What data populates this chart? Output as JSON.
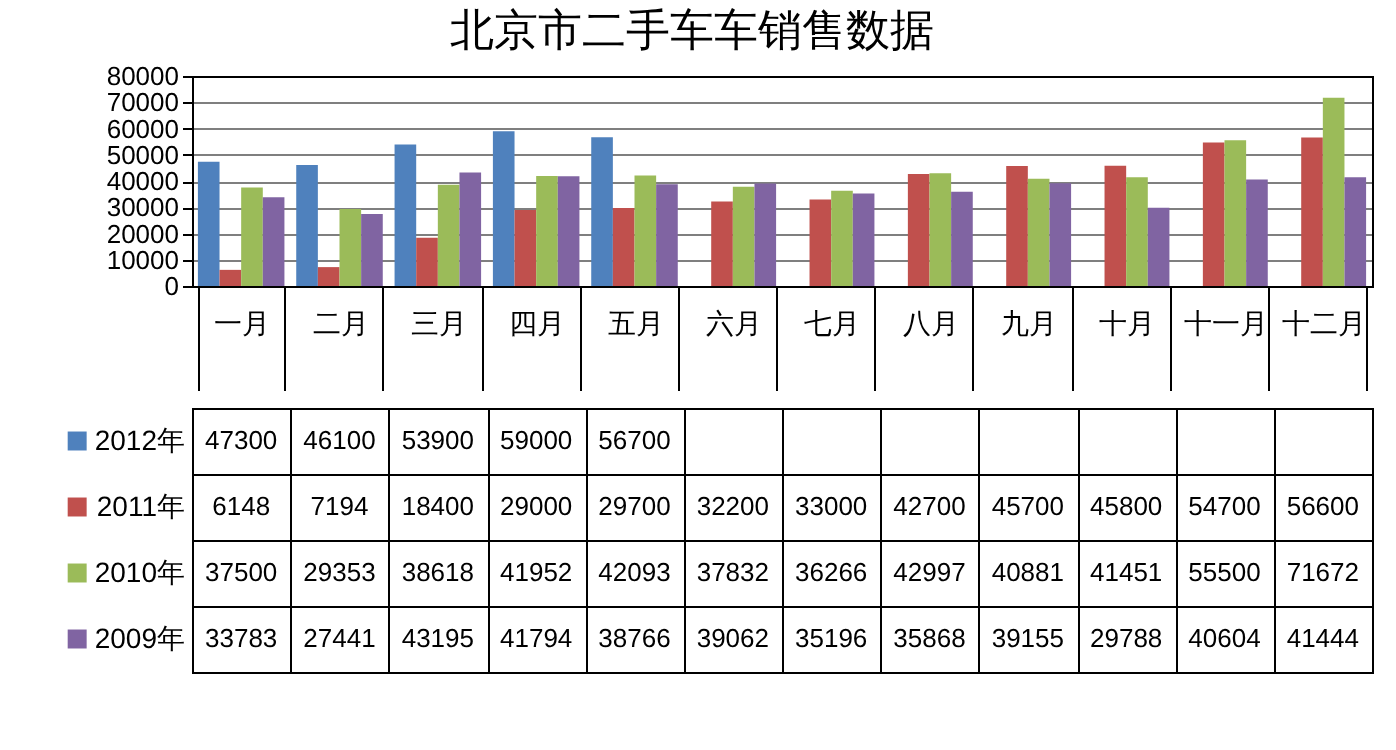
{
  "chart_data": {
    "type": "bar",
    "title": "北京市二手车车销售数据",
    "categories": [
      "一月",
      "二月",
      "三月",
      "四月",
      "五月",
      "六月",
      "七月",
      "八月",
      "九月",
      "十月",
      "十一月",
      "十二月"
    ],
    "series": [
      {
        "name": "2012年",
        "color": "#4f81bd",
        "values": [
          47300,
          46100,
          53900,
          59000,
          56700,
          null,
          null,
          null,
          null,
          null,
          null,
          null
        ]
      },
      {
        "name": "2011年",
        "color": "#c0504d",
        "values": [
          6148,
          7194,
          18400,
          29000,
          29700,
          32200,
          33000,
          42700,
          45700,
          45800,
          54700,
          56600
        ]
      },
      {
        "name": "2010年",
        "color": "#9bbb59",
        "values": [
          37500,
          29353,
          38618,
          41952,
          42093,
          37832,
          36266,
          42997,
          40881,
          41451,
          55500,
          71672
        ]
      },
      {
        "name": "2009年",
        "color": "#8064a2",
        "values": [
          33783,
          27441,
          43195,
          41794,
          38766,
          39062,
          35196,
          35868,
          39155,
          29788,
          40604,
          41444
        ]
      }
    ],
    "ylim": [
      0,
      80000
    ],
    "yticks": [
      0,
      10000,
      20000,
      30000,
      40000,
      50000,
      60000,
      70000,
      80000
    ],
    "grid": "y",
    "legend": "bottom left",
    "data_labels": true
  }
}
